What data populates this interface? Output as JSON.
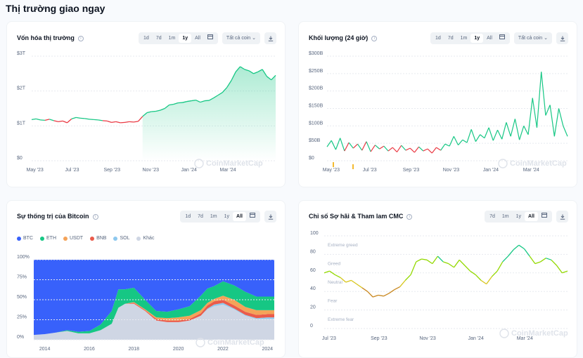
{
  "page_title": "Thị trường giao ngay",
  "watermark": "CoinMarketCap",
  "info_glyph": "i",
  "colors": {
    "green": "#16c784",
    "red": "#ea3943",
    "btc": "#3861fb",
    "eth": "#16c784",
    "usdt": "#f4a359",
    "bnb": "#ea5b4b",
    "sol": "#8dc8ee",
    "other": "#cfd6e4"
  },
  "market_cap": {
    "title": "Vốn hóa thị trường",
    "ranges": [
      "1d",
      "7d",
      "1m",
      "1y",
      "All"
    ],
    "active_range": "1y",
    "filter_label": "Tất cả coin",
    "chart_data": {
      "type": "area",
      "ylabels": [
        "$3T",
        "$2T",
        "$1T",
        "$0"
      ],
      "yticks": [
        3,
        2,
        1,
        0
      ],
      "ylim": [
        0,
        3
      ],
      "xlabels": [
        "May '23",
        "Jul '23",
        "Sep '23",
        "Nov '23",
        "Jan '24",
        "Mar '24"
      ],
      "unit": "T USD",
      "values": [
        1.18,
        1.2,
        1.17,
        1.16,
        1.19,
        1.15,
        1.12,
        1.14,
        1.09,
        1.2,
        1.24,
        1.22,
        1.21,
        1.19,
        1.18,
        1.17,
        1.15,
        1.14,
        1.1,
        1.12,
        1.09,
        1.1,
        1.12,
        1.11,
        1.13,
        1.27,
        1.38,
        1.41,
        1.42,
        1.45,
        1.5,
        1.6,
        1.62,
        1.66,
        1.67,
        1.7,
        1.72,
        1.74,
        1.68,
        1.72,
        1.73,
        1.8,
        1.88,
        1.96,
        2.1,
        2.3,
        2.55,
        2.7,
        2.62,
        2.58,
        2.5,
        2.55,
        2.62,
        2.42,
        2.32,
        2.45
      ]
    }
  },
  "volume": {
    "title": "Khối lượng (24 giờ)",
    "ranges": [
      "1d",
      "7d",
      "1m",
      "1y",
      "All"
    ],
    "active_range": "1y",
    "filter_label": "Tất cả coin",
    "chart_data": {
      "type": "line",
      "ylabels": [
        "$300B",
        "$250B",
        "$200B",
        "$150B",
        "$100B",
        "$50B",
        "$0"
      ],
      "yticks": [
        300,
        250,
        200,
        150,
        100,
        50,
        0
      ],
      "ylim": [
        0,
        300
      ],
      "xlabels": [
        "May '23",
        "Jul '23",
        "Sep '23",
        "Nov '23",
        "Jan '24",
        "Mar '24"
      ],
      "unit": "B USD",
      "values": [
        40,
        58,
        32,
        65,
        28,
        52,
        36,
        48,
        30,
        55,
        26,
        45,
        34,
        42,
        28,
        38,
        25,
        44,
        30,
        36,
        24,
        40,
        28,
        34,
        22,
        38,
        30,
        48,
        42,
        70,
        45,
        60,
        52,
        90,
        55,
        75,
        65,
        95,
        58,
        88,
        62,
        110,
        70,
        120,
        60,
        100,
        75,
        180,
        95,
        255,
        130,
        160,
        70,
        150,
        100,
        70
      ]
    }
  },
  "btc_dominance": {
    "title": "Sự thống trị của Bitcoin",
    "ranges": [
      "1d",
      "7d",
      "1m",
      "1y",
      "All"
    ],
    "active_range": "All",
    "legend": [
      "BTC",
      "ETH",
      "USDT",
      "BNB",
      "SOL",
      "Khác"
    ],
    "chart_data": {
      "type": "area",
      "ylabels": [
        "100%",
        "75%",
        "50%",
        "25%",
        "0%"
      ],
      "yticks": [
        100,
        75,
        50,
        25,
        0
      ],
      "ylim": [
        0,
        100
      ],
      "xlabels": [
        "2014",
        "2016",
        "2018",
        "2020",
        "2022",
        "2024"
      ],
      "x": [
        2013.5,
        2014,
        2014.5,
        2015,
        2015.5,
        2016,
        2016.5,
        2017,
        2017.3,
        2017.6,
        2018,
        2018.5,
        2019,
        2019.5,
        2020,
        2020.5,
        2021,
        2021.3,
        2021.6,
        2022,
        2022.5,
        2023,
        2023.5,
        2024,
        2024.3
      ],
      "series": [
        {
          "name": "Khác",
          "values": [
            6,
            7,
            9,
            11,
            8,
            8,
            12,
            20,
            40,
            45,
            45,
            36,
            24,
            22,
            22,
            24,
            30,
            38,
            42,
            44,
            38,
            30,
            26,
            26,
            26
          ]
        },
        {
          "name": "SOL",
          "values": [
            0,
            0,
            0,
            0,
            0,
            0,
            0,
            0,
            0,
            0,
            0,
            0,
            0,
            0,
            0,
            0,
            0,
            1,
            2,
            2,
            1,
            1,
            1,
            2,
            2
          ]
        },
        {
          "name": "BNB",
          "values": [
            0,
            0,
            0,
            0,
            0,
            0,
            0,
            0,
            0,
            0,
            1,
            1,
            2,
            2,
            2,
            2,
            3,
            4,
            4,
            4,
            4,
            4,
            4,
            4,
            4
          ]
        },
        {
          "name": "USDT",
          "values": [
            0,
            0,
            0,
            0,
            0,
            0,
            0,
            0,
            0,
            0,
            1,
            1,
            2,
            3,
            4,
            4,
            4,
            3,
            3,
            5,
            7,
            6,
            6,
            5,
            5
          ]
        },
        {
          "name": "ETH",
          "values": [
            0,
            0,
            0,
            1,
            2,
            3,
            7,
            16,
            23,
            18,
            18,
            12,
            8,
            8,
            10,
            12,
            18,
            18,
            16,
            18,
            18,
            19,
            17,
            17,
            17
          ]
        },
        {
          "name": "BTC",
          "values": [
            94,
            93,
            91,
            88,
            90,
            89,
            81,
            64,
            37,
            37,
            35,
            50,
            64,
            65,
            62,
            58,
            45,
            36,
            33,
            27,
            32,
            40,
            46,
            46,
            46
          ]
        }
      ]
    }
  },
  "fear_greed": {
    "title": "Chỉ số Sợ hãi & Tham lam CMC",
    "ranges": [
      "7d",
      "1m",
      "1y",
      "All"
    ],
    "active_range": "All",
    "zones": [
      "Extreme greed",
      "Greed",
      "Neutral",
      "Fear",
      "Extreme fear"
    ],
    "chart_data": {
      "type": "line",
      "ylabels": [
        "100",
        "80",
        "60",
        "40",
        "20",
        "0"
      ],
      "yticks": [
        100,
        80,
        60,
        40,
        20,
        0
      ],
      "ylim": [
        0,
        100
      ],
      "xlabels": [
        "Jul '23",
        "Sep '23",
        "Nov '23",
        "Jan '24",
        "Mar '24"
      ],
      "values": [
        60,
        62,
        58,
        55,
        50,
        52,
        48,
        44,
        40,
        34,
        36,
        35,
        38,
        42,
        45,
        52,
        58,
        72,
        75,
        74,
        70,
        78,
        72,
        70,
        66,
        74,
        68,
        62,
        58,
        52,
        48,
        56,
        62,
        72,
        78,
        85,
        90,
        86,
        78,
        70,
        72,
        76,
        74,
        68,
        60,
        62
      ]
    }
  }
}
